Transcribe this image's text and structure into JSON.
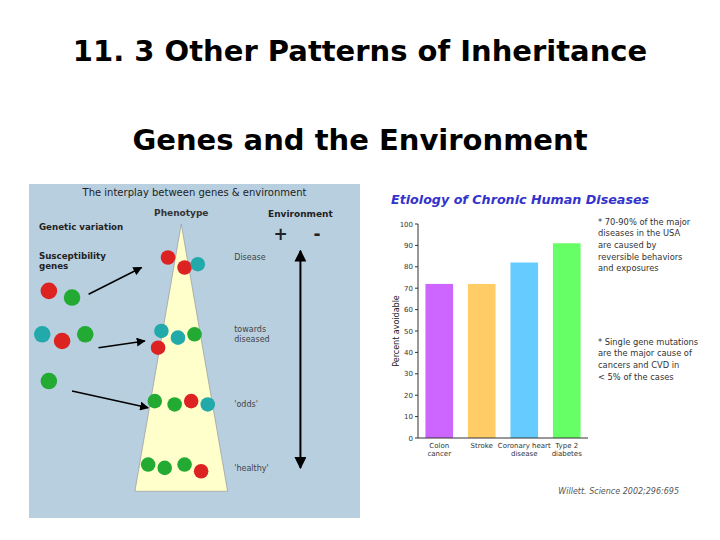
{
  "chart_data": {
    "type": "bar",
    "title": "Etiology of Chronic Human Diseases",
    "categories": [
      "Colon\ncancer",
      "Stroke",
      "Coronary heart\ndisease",
      "Type 2\ndiabetes"
    ],
    "values": [
      72,
      72,
      82,
      91
    ],
    "colors": [
      "#cc66ff",
      "#ffcc66",
      "#66ccff",
      "#66ff66"
    ],
    "ylabel": "Percent avoidable",
    "ylim": [
      0,
      100
    ],
    "yticks": [
      0,
      10,
      20,
      30,
      40,
      50,
      60,
      70,
      80,
      90,
      100
    ],
    "grid": false,
    "annotations": [
      "11. 3 Other Patterns of Inheritance",
      "Genes and the Environment",
      "The interplay between genes & environment",
      "Phenotype",
      "Disease",
      "towards\ndiseased",
      "'odds'",
      "'healthy'",
      "Genetic variation",
      "Susceptibility\ngenes",
      "Environment",
      "+",
      "-",
      "* 70-90% of the major\ndiseases in the USA\nare caused by\nreversible behaviors\nand exposures",
      "* Single gene mutations\nare the major cause of\ncancers and CVD in\n< 5% of the cases",
      "Willett.  Science 2002;296:695"
    ]
  }
}
